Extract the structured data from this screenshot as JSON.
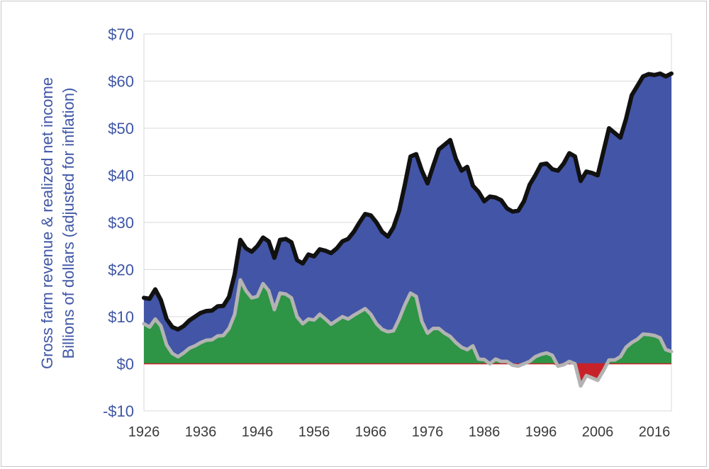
{
  "chart_data": {
    "type": "area",
    "ylabel": [
      "Gross farm revenue & realized net income",
      "Billions of dollars (adjusted for inflation)"
    ],
    "xlabel": "",
    "ylim": [
      -10,
      70
    ],
    "xlim": [
      1926,
      2019
    ],
    "yticks": [
      -10,
      0,
      10,
      20,
      30,
      40,
      50,
      60,
      70
    ],
    "ytick_labels": [
      "-$10",
      "$0",
      "$10",
      "$20",
      "$30",
      "$40",
      "$50",
      "$60",
      "$70"
    ],
    "xticks": [
      1926,
      1936,
      1946,
      1956,
      1966,
      1976,
      1986,
      1996,
      2006,
      2016
    ],
    "xtick_labels": [
      "1926",
      "1936",
      "1946",
      "1956",
      "1966",
      "1976",
      "1986",
      "1996",
      "2006",
      "2016"
    ],
    "grid": true,
    "legend": "none",
    "series": [
      {
        "color": "#4355a6",
        "line_color": "#111111",
        "points": [
          [
            1926,
            14
          ],
          [
            1927,
            13.8
          ],
          [
            1928,
            15.8
          ],
          [
            1929,
            13.5
          ],
          [
            1930,
            9.5
          ],
          [
            1931,
            7.8
          ],
          [
            1932,
            7.3
          ],
          [
            1933,
            8
          ],
          [
            1934,
            9.2
          ],
          [
            1935,
            10
          ],
          [
            1936,
            10.8
          ],
          [
            1937,
            11.2
          ],
          [
            1938,
            11.3
          ],
          [
            1939,
            12.2
          ],
          [
            1940,
            12.3
          ],
          [
            1941,
            14.2
          ],
          [
            1942,
            19
          ],
          [
            1943,
            26.3
          ],
          [
            1944,
            24.5
          ],
          [
            1945,
            23.8
          ],
          [
            1946,
            25
          ],
          [
            1947,
            26.8
          ],
          [
            1948,
            26
          ],
          [
            1949,
            22.5
          ],
          [
            1950,
            26.3
          ],
          [
            1951,
            26.5
          ],
          [
            1952,
            25.8
          ],
          [
            1953,
            22
          ],
          [
            1954,
            21.3
          ],
          [
            1955,
            23.2
          ],
          [
            1956,
            22.8
          ],
          [
            1957,
            24.3
          ],
          [
            1958,
            24
          ],
          [
            1959,
            23.5
          ],
          [
            1960,
            24.5
          ],
          [
            1961,
            26
          ],
          [
            1962,
            26.5
          ],
          [
            1963,
            28
          ],
          [
            1964,
            30
          ],
          [
            1965,
            31.8
          ],
          [
            1966,
            31.5
          ],
          [
            1967,
            30
          ],
          [
            1968,
            28
          ],
          [
            1969,
            27
          ],
          [
            1970,
            29
          ],
          [
            1971,
            32.5
          ],
          [
            1972,
            38
          ],
          [
            1973,
            44
          ],
          [
            1974,
            44.5
          ],
          [
            1975,
            41
          ],
          [
            1976,
            38.3
          ],
          [
            1977,
            42
          ],
          [
            1978,
            45.5
          ],
          [
            1979,
            46.5
          ],
          [
            1980,
            47.5
          ],
          [
            1981,
            43.5
          ],
          [
            1982,
            41
          ],
          [
            1983,
            41.8
          ],
          [
            1984,
            37.8
          ],
          [
            1985,
            36.5
          ],
          [
            1986,
            34.5
          ],
          [
            1987,
            35.5
          ],
          [
            1988,
            35.3
          ],
          [
            1989,
            34.7
          ],
          [
            1990,
            33
          ],
          [
            1991,
            32.3
          ],
          [
            1992,
            32.5
          ],
          [
            1993,
            34.5
          ],
          [
            1994,
            38
          ],
          [
            1995,
            40
          ],
          [
            1996,
            42.3
          ],
          [
            1997,
            42.5
          ],
          [
            1998,
            41.3
          ],
          [
            1999,
            41
          ],
          [
            2000,
            42.5
          ],
          [
            2001,
            44.7
          ],
          [
            2002,
            44
          ],
          [
            2003,
            38.8
          ],
          [
            2004,
            40.8
          ],
          [
            2005,
            40.5
          ],
          [
            2006,
            40
          ],
          [
            2007,
            45
          ],
          [
            2008,
            50
          ],
          [
            2009,
            49
          ],
          [
            2010,
            48
          ],
          [
            2011,
            52
          ],
          [
            2012,
            57
          ],
          [
            2013,
            59
          ],
          [
            2014,
            61
          ],
          [
            2015,
            61.5
          ],
          [
            2016,
            61.3
          ],
          [
            2017,
            61.6
          ],
          [
            2018,
            61
          ],
          [
            2019,
            61.6
          ]
        ]
      },
      {
        "color": "#2e9446",
        "negative_color": "#c7222a",
        "line_color": "#b3b3b3",
        "points": [
          [
            1926,
            8.5
          ],
          [
            1927,
            7.8
          ],
          [
            1928,
            9.5
          ],
          [
            1929,
            8
          ],
          [
            1930,
            4
          ],
          [
            1931,
            2.2
          ],
          [
            1932,
            1.5
          ],
          [
            1933,
            2.3
          ],
          [
            1934,
            3.3
          ],
          [
            1935,
            3.8
          ],
          [
            1936,
            4.5
          ],
          [
            1937,
            5
          ],
          [
            1938,
            5.1
          ],
          [
            1939,
            5.9
          ],
          [
            1940,
            6
          ],
          [
            1941,
            7.5
          ],
          [
            1942,
            10.5
          ],
          [
            1943,
            17.8
          ],
          [
            1944,
            15.5
          ],
          [
            1945,
            14
          ],
          [
            1946,
            14.3
          ],
          [
            1947,
            17
          ],
          [
            1948,
            15.5
          ],
          [
            1949,
            11.5
          ],
          [
            1950,
            15
          ],
          [
            1951,
            14.8
          ],
          [
            1952,
            14
          ],
          [
            1953,
            10
          ],
          [
            1954,
            8.5
          ],
          [
            1955,
            9.5
          ],
          [
            1956,
            9.3
          ],
          [
            1957,
            10.5
          ],
          [
            1958,
            9.5
          ],
          [
            1959,
            8.4
          ],
          [
            1960,
            9.2
          ],
          [
            1961,
            10
          ],
          [
            1962,
            9.5
          ],
          [
            1963,
            10.3
          ],
          [
            1964,
            11
          ],
          [
            1965,
            11.7
          ],
          [
            1966,
            10.5
          ],
          [
            1967,
            8.5
          ],
          [
            1968,
            7.3
          ],
          [
            1969,
            6.8
          ],
          [
            1970,
            7
          ],
          [
            1971,
            9.5
          ],
          [
            1972,
            12.5
          ],
          [
            1973,
            15
          ],
          [
            1974,
            14.3
          ],
          [
            1975,
            9
          ],
          [
            1976,
            6.5
          ],
          [
            1977,
            7.5
          ],
          [
            1978,
            7.5
          ],
          [
            1979,
            6.5
          ],
          [
            1980,
            5.8
          ],
          [
            1981,
            4.5
          ],
          [
            1982,
            3.5
          ],
          [
            1983,
            3
          ],
          [
            1984,
            3.8
          ],
          [
            1985,
            1
          ],
          [
            1986,
            0.9
          ],
          [
            1987,
            0
          ],
          [
            1988,
            1
          ],
          [
            1989,
            0.5
          ],
          [
            1990,
            0.5
          ],
          [
            1991,
            -0.3
          ],
          [
            1992,
            -0.5
          ],
          [
            1993,
            0
          ],
          [
            1994,
            0.5
          ],
          [
            1995,
            1.5
          ],
          [
            1996,
            2
          ],
          [
            1997,
            2.3
          ],
          [
            1998,
            1.8
          ],
          [
            1999,
            -0.5
          ],
          [
            2000,
            -0.2
          ],
          [
            2001,
            0.5
          ],
          [
            2002,
            0
          ],
          [
            2003,
            -4.7
          ],
          [
            2004,
            -2.5
          ],
          [
            2005,
            -3
          ],
          [
            2006,
            -3.5
          ],
          [
            2007,
            -1.5
          ],
          [
            2008,
            0.8
          ],
          [
            2009,
            0.8
          ],
          [
            2010,
            1.5
          ],
          [
            2011,
            3.5
          ],
          [
            2012,
            4.5
          ],
          [
            2013,
            5.2
          ],
          [
            2014,
            6.3
          ],
          [
            2015,
            6.2
          ],
          [
            2016,
            6
          ],
          [
            2017,
            5.5
          ],
          [
            2018,
            3
          ],
          [
            2019,
            2.6
          ]
        ]
      }
    ]
  }
}
